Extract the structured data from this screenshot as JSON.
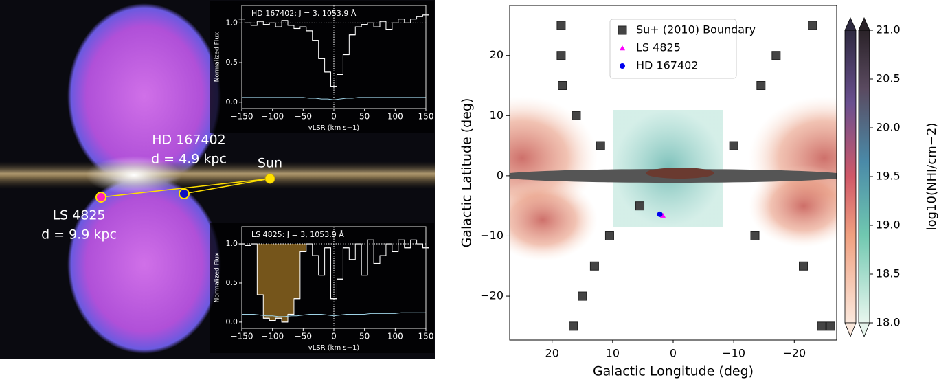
{
  "illustration": {
    "labels": [
      "HD 167402",
      "d = 4.9 kpc",
      "Sun",
      "LS 4825",
      "d = 9.9 kpc"
    ]
  },
  "chart_data": [
    {
      "type": "step",
      "title": "HD 167402: J = 3, 1053.9 Å",
      "xlabel": "vLSR (km s−1)",
      "ylabel": "Normalized Flux",
      "x": [
        -150,
        -140,
        -130,
        -120,
        -110,
        -100,
        -90,
        -80,
        -70,
        -60,
        -50,
        -40,
        -30,
        -20,
        -10,
        0,
        10,
        20,
        30,
        40,
        50,
        60,
        70,
        80,
        90,
        100,
        110,
        120,
        130,
        140,
        150
      ],
      "series": [
        {
          "color": "#ffffff",
          "values": [
            1.05,
            1.0,
            0.97,
            1.02,
            0.98,
            1.0,
            0.95,
            1.03,
            0.97,
            0.93,
            0.95,
            0.9,
            0.78,
            0.55,
            0.38,
            0.2,
            0.35,
            0.6,
            0.85,
            0.95,
            0.98,
            1.0,
            0.95,
            1.02,
            0.92,
            1.0,
            1.05,
            1.0,
            1.05,
            1.08,
            1.1
          ]
        },
        {
          "color": "#9fd3e6",
          "values": [
            0.06,
            0.06,
            0.06,
            0.06,
            0.06,
            0.06,
            0.06,
            0.06,
            0.06,
            0.06,
            0.06,
            0.05,
            0.05,
            0.04,
            0.04,
            0.03,
            0.04,
            0.05,
            0.05,
            0.06,
            0.06,
            0.06,
            0.06,
            0.06,
            0.06,
            0.06,
            0.06,
            0.06,
            0.06,
            0.06,
            0.06
          ]
        }
      ],
      "hline": 1,
      "vline": 0,
      "xlim": [
        -150,
        150
      ],
      "ylim": [
        -0.08,
        1.22
      ],
      "xticks": [
        {
          "value": -150,
          "label": "−150"
        },
        {
          "value": -100,
          "label": "−100"
        },
        {
          "value": -50,
          "label": "−50"
        },
        0,
        50,
        100,
        150
      ],
      "yticks": [
        {
          "value": 0,
          "label": "0.0"
        },
        0.5,
        {
          "value": 1,
          "label": "1.0"
        }
      ]
    },
    {
      "type": "step",
      "title": "LS 4825: J = 3, 1053.9 Å",
      "xlabel": "vLSR (km s−1)",
      "ylabel": "Normalized Flux",
      "x": [
        -150,
        -140,
        -130,
        -120,
        -110,
        -100,
        -90,
        -80,
        -70,
        -60,
        -50,
        -40,
        -30,
        -20,
        -10,
        0,
        10,
        20,
        30,
        40,
        50,
        60,
        70,
        80,
        90,
        100,
        110,
        120,
        130,
        140,
        150
      ],
      "series": [
        {
          "color": "#ffffff",
          "values": [
            1.0,
            0.98,
            1.0,
            0.35,
            0.05,
            0.02,
            0.05,
            0.0,
            0.1,
            0.3,
            0.9,
            1.0,
            0.85,
            0.6,
            0.95,
            0.3,
            0.55,
            0.95,
            0.8,
            1.0,
            0.6,
            1.05,
            0.75,
            0.85,
            1.0,
            0.9,
            1.05,
            0.95,
            1.05,
            1.0,
            0.95
          ]
        },
        {
          "color": "#9fd3e6",
          "values": [
            0.1,
            0.1,
            0.1,
            0.09,
            0.08,
            0.08,
            0.07,
            0.07,
            0.08,
            0.08,
            0.09,
            0.1,
            0.1,
            0.1,
            0.09,
            0.08,
            0.09,
            0.1,
            0.1,
            0.1,
            0.1,
            0.11,
            0.11,
            0.11,
            0.11,
            0.11,
            0.12,
            0.12,
            0.12,
            0.12,
            0.12
          ]
        }
      ],
      "shade": {
        "x": [
          -120,
          -50
        ],
        "top": 1,
        "color": "#8a6420"
      },
      "hline": 1,
      "vline": 0,
      "xlim": [
        -150,
        150
      ],
      "ylim": [
        -0.08,
        1.22
      ],
      "xticks": [
        {
          "value": -150,
          "label": "−150"
        },
        {
          "value": -100,
          "label": "−100"
        },
        {
          "value": -50,
          "label": "−50"
        },
        0,
        50,
        100,
        150
      ],
      "yticks": [
        {
          "value": 0,
          "label": "0.0"
        },
        0.5,
        {
          "value": 1,
          "label": "1.0"
        }
      ]
    },
    {
      "type": "scatter",
      "xlabel": "Galactic Longitude (deg)",
      "ylabel": "Galactic Latitude (deg)",
      "legend": "upper center",
      "xlim": [
        27,
        -27
      ],
      "ylim": [
        -27.3,
        28.3
      ],
      "xticks": [
        20,
        10,
        0,
        {
          "value": -10,
          "label": "−10"
        },
        {
          "value": -20,
          "label": "−20"
        }
      ],
      "yticks": [
        {
          "value": -20,
          "label": "−20"
        },
        {
          "value": -10,
          "label": "−10"
        },
        0,
        10,
        20
      ],
      "series": [
        {
          "name": "Su+ (2010) Boundary",
          "color": "#444444",
          "marker": "square",
          "x": [
            18.5,
            18.5,
            18.3,
            16,
            12,
            5.5,
            10.5,
            13,
            15,
            16.5,
            -23,
            -17,
            -14.5,
            -10,
            -13.5,
            -21.5,
            -24.5,
            -26
          ],
          "y": [
            25,
            20,
            15,
            10,
            5,
            -5,
            -10,
            -15,
            -20,
            -25,
            25,
            20,
            15,
            5,
            -10,
            -15,
            -25,
            -25
          ]
        },
        {
          "name": "LS 4825",
          "color": "#ff00ff",
          "marker": "triangle",
          "x": [
            1.7
          ],
          "y": [
            -6.6
          ]
        },
        {
          "name": "HD 167402",
          "color": "#0000ee",
          "marker": "circle",
          "x": [
            2.2
          ],
          "y": [
            -6.4
          ]
        }
      ],
      "colorbar": {
        "label": "log10(NHI/cm−2)",
        "lim": [
          18,
          21.0
        ],
        "ticks": [
          {
            "value": 18,
            "label": "18.0"
          },
          18.5,
          {
            "value": 19,
            "label": "19.0"
          },
          19.5,
          {
            "value": 20,
            "label": "20.0"
          },
          20.5,
          {
            "value": 21,
            "label": "21.0"
          }
        ]
      }
    }
  ]
}
